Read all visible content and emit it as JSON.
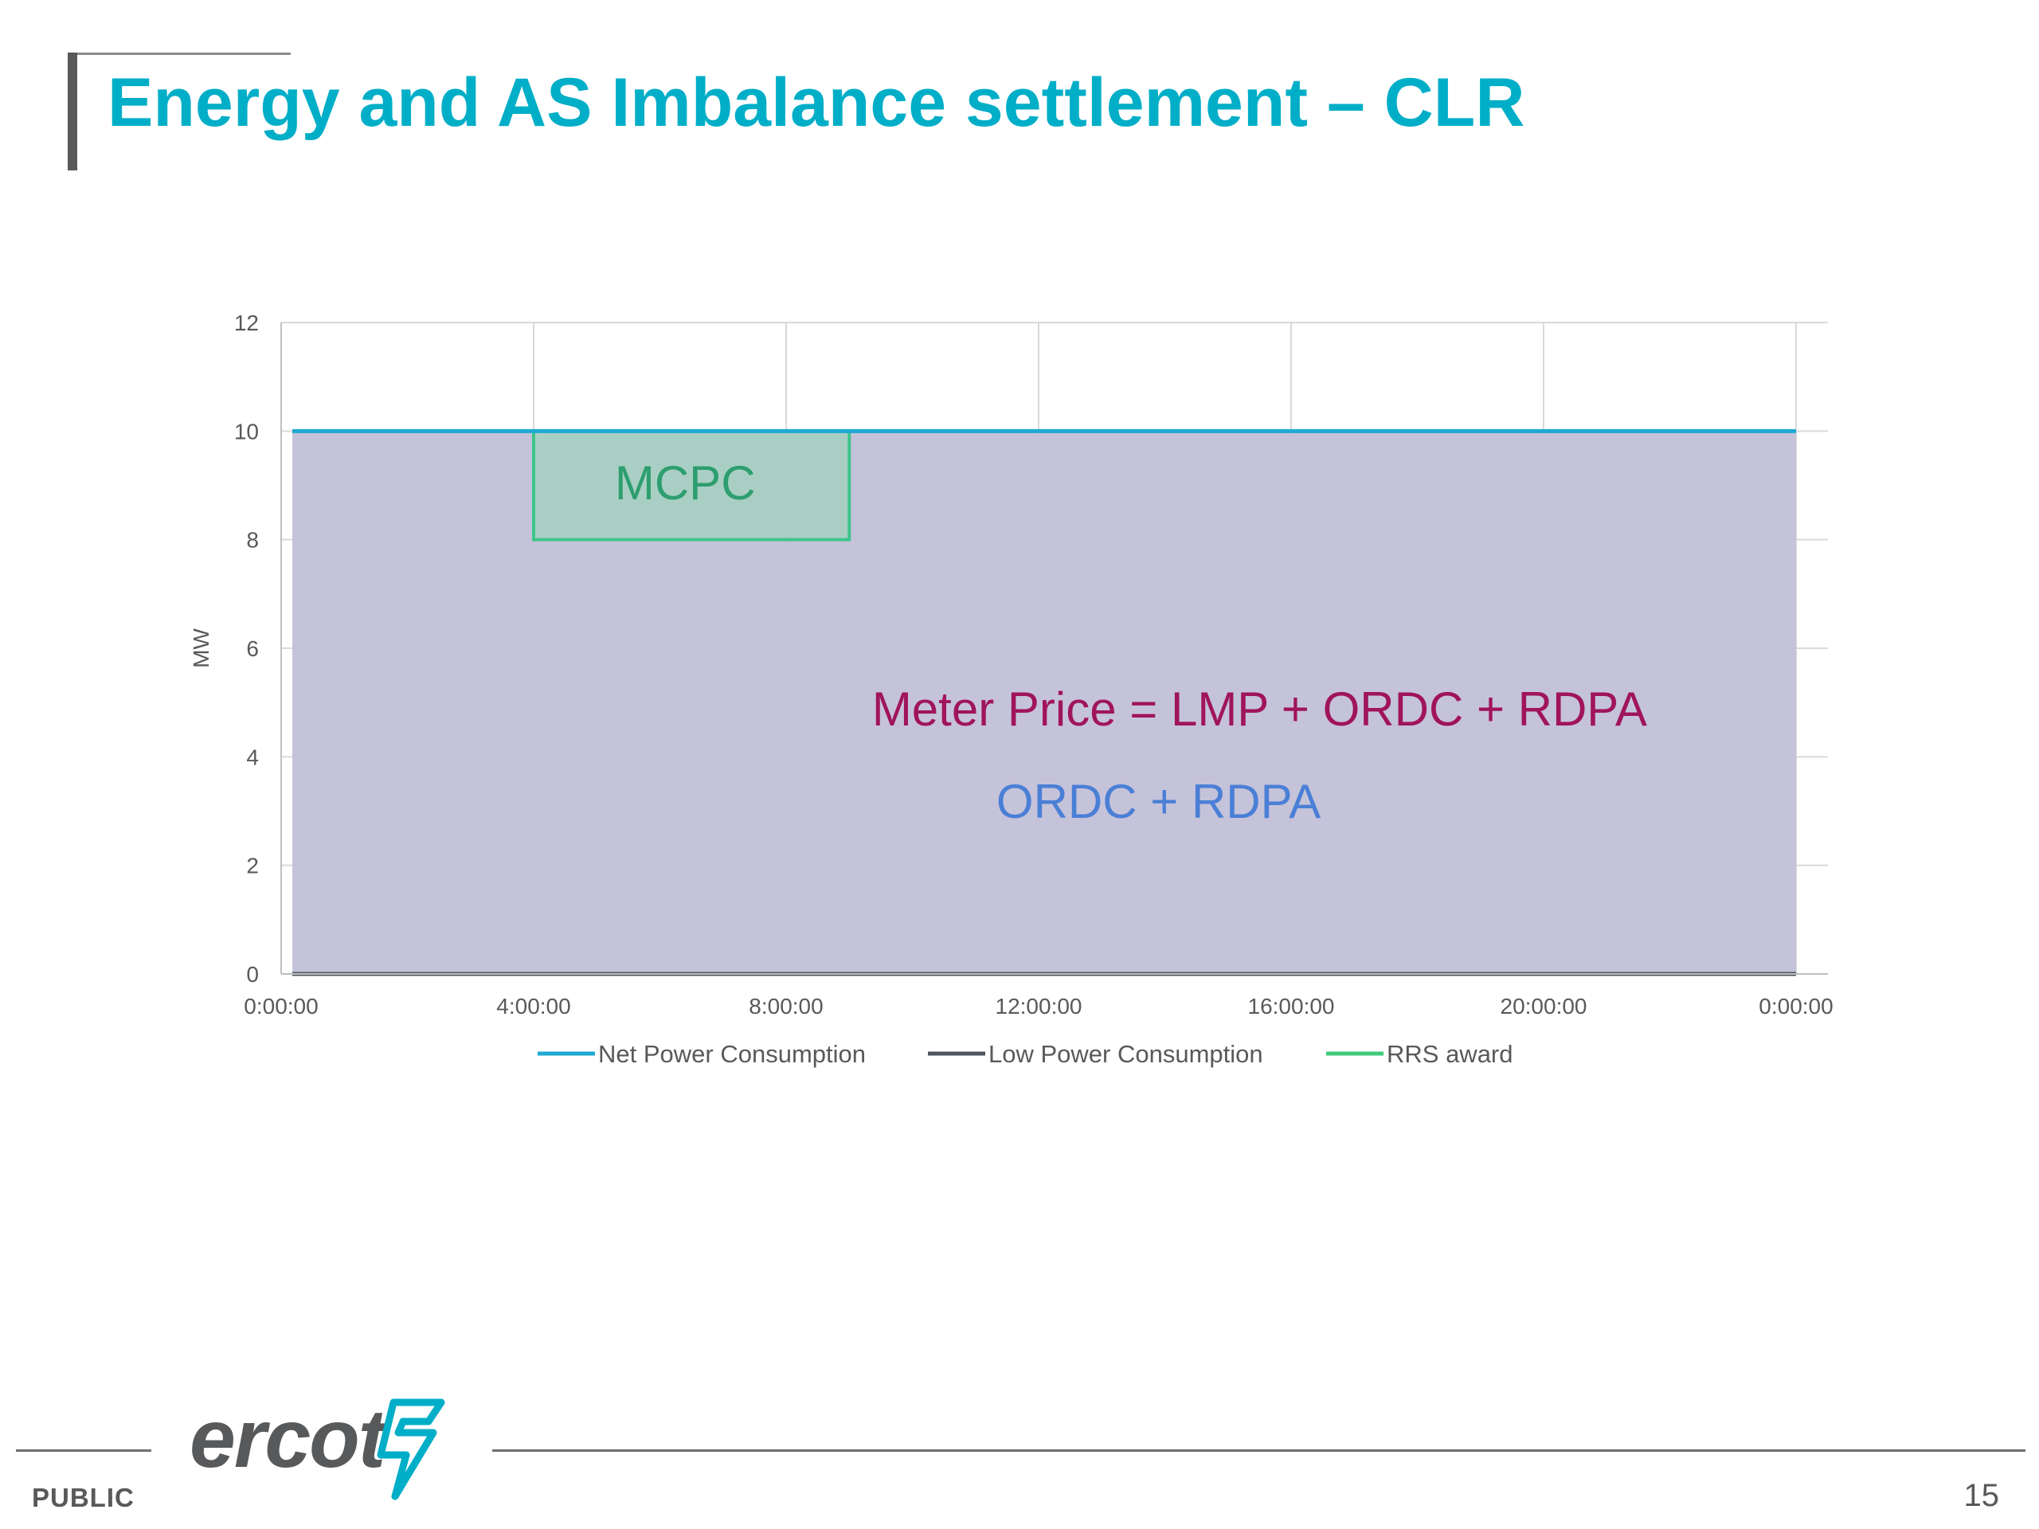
{
  "slide": {
    "title": "Energy and AS Imbalance settlement – CLR",
    "footer_label": "PUBLIC",
    "page_number": "15",
    "logo_text": "ercot"
  },
  "colors": {
    "title": "#00aec7",
    "net_power": "#1fa8d1",
    "low_power": "#4d5660",
    "rrs_award": "#3ecb7b",
    "energy_area": "#c2c0d8",
    "mcpc_fill": "#a9cfc4",
    "mcpc_border": "#3ec48a",
    "meter_price_text": "#a0145c",
    "ordc_text": "#4a7fd6"
  },
  "chart_data": {
    "type": "line",
    "ylabel": "MW",
    "xlabel": "",
    "ylim": [
      0,
      12
    ],
    "yticks": [
      "0",
      "2",
      "4",
      "6",
      "8",
      "10",
      "12"
    ],
    "xlim_hours": [
      0,
      24
    ],
    "xticks": [
      "0:00:00",
      "4:00:00",
      "8:00:00",
      "12:00:00",
      "16:00:00",
      "20:00:00",
      "0:00:00"
    ],
    "grid": true,
    "legend_position": "bottom",
    "series": [
      {
        "name": "Net Power Consumption",
        "x_hours": [
          0,
          24
        ],
        "y": [
          10,
          10
        ]
      },
      {
        "name": "Low Power Consumption",
        "x_hours": [
          0,
          24
        ],
        "y": [
          0,
          0
        ]
      },
      {
        "name": "RRS award",
        "x_hours": [
          4,
          9,
          9,
          4,
          4
        ],
        "y": [
          10,
          10,
          8,
          8,
          10
        ]
      }
    ],
    "shaded_regions": [
      {
        "label": "Meter Price = LMP + ORDC + RDPA",
        "x_hours": [
          0,
          24
        ],
        "y_range": [
          0,
          10
        ]
      },
      {
        "label": "MCPC",
        "x_hours": [
          4,
          9
        ],
        "y_range": [
          8,
          10
        ]
      }
    ],
    "annotations": [
      {
        "text": "MCPC"
      },
      {
        "text": "Meter Price = LMP + ORDC + RDPA"
      },
      {
        "text": "ORDC + RDPA"
      }
    ]
  }
}
